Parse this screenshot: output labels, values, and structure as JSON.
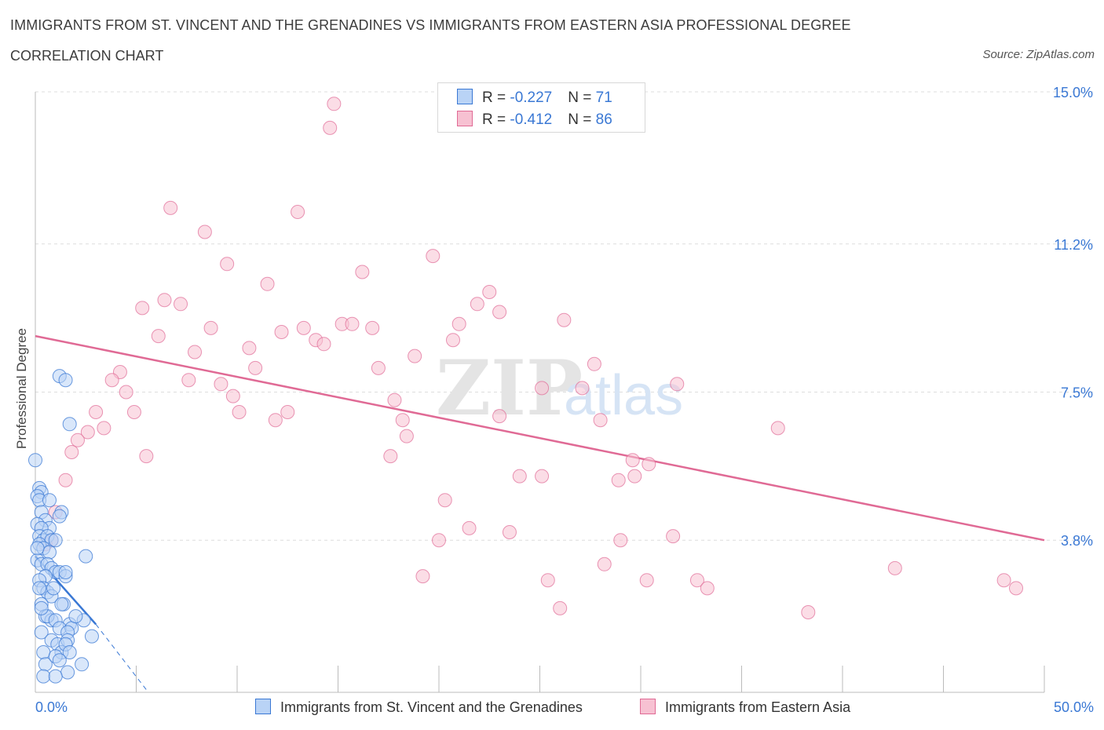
{
  "header": {
    "title_line1": "IMMIGRANTS FROM ST. VINCENT AND THE GRENADINES VS IMMIGRANTS FROM EASTERN ASIA PROFESSIONAL DEGREE",
    "title_line2": "CORRELATION CHART",
    "source": "Source: ZipAtlas.com"
  },
  "legend": {
    "row1": {
      "r_label": "R = ",
      "r_value": "-0.227",
      "n_label": "N = ",
      "n_value": "71"
    },
    "row2": {
      "r_label": "R = ",
      "r_value": "-0.412",
      "n_label": "N = ",
      "n_value": "86"
    }
  },
  "bottom_legend": {
    "series1": "Immigrants from St. Vincent and the Grenadines",
    "series2": "Immigrants from Eastern Asia"
  },
  "colors": {
    "blue": "#3a78d4",
    "blue_fill": "#b9d3f6",
    "pink": "#e06a95",
    "pink_fill": "#f7c1d2",
    "grid": "#dddddd",
    "tick_label": "#3a78d4"
  },
  "chart_data": {
    "type": "scatter",
    "title": "IMMIGRANTS FROM ST. VINCENT AND THE GRENADINES VS IMMIGRANTS FROM EASTERN ASIA PROFESSIONAL DEGREE CORRELATION CHART",
    "xlabel": "",
    "ylabel": "Professional Degree",
    "xlim": [
      0,
      50
    ],
    "ylim": [
      0,
      15
    ],
    "x_tick_labels": {
      "min": "0.0%",
      "max": "50.0%"
    },
    "y_ticks": [
      {
        "value": 3.8,
        "label": "3.8%"
      },
      {
        "value": 7.5,
        "label": "7.5%"
      },
      {
        "value": 11.2,
        "label": "11.2%"
      },
      {
        "value": 15.0,
        "label": "15.0%"
      }
    ],
    "watermark": "ZIPatlas",
    "series": [
      {
        "name": "Immigrants from St. Vincent and the Grenadines",
        "color": "#3a78d4",
        "R": -0.227,
        "N": 71,
        "trend": {
          "x0": 0,
          "y0": 3.4,
          "x1": 3.0,
          "y1": 1.7,
          "dash_to_x": 5.6,
          "dash_to_y": 0.0
        },
        "points": [
          [
            0.0,
            5.8
          ],
          [
            0.2,
            5.1
          ],
          [
            0.3,
            5.0
          ],
          [
            0.1,
            4.9
          ],
          [
            0.2,
            4.8
          ],
          [
            0.3,
            4.5
          ],
          [
            0.5,
            4.3
          ],
          [
            0.7,
            4.1
          ],
          [
            1.3,
            4.5
          ],
          [
            1.2,
            4.4
          ],
          [
            0.1,
            4.2
          ],
          [
            0.3,
            4.1
          ],
          [
            0.2,
            3.9
          ],
          [
            0.4,
            3.8
          ],
          [
            0.6,
            3.9
          ],
          [
            0.8,
            3.8
          ],
          [
            1.0,
            3.8
          ],
          [
            0.2,
            3.7
          ],
          [
            0.4,
            3.6
          ],
          [
            0.7,
            3.5
          ],
          [
            0.1,
            3.3
          ],
          [
            0.3,
            3.2
          ],
          [
            0.6,
            3.2
          ],
          [
            0.8,
            3.1
          ],
          [
            1.0,
            3.0
          ],
          [
            1.2,
            3.0
          ],
          [
            1.5,
            2.9
          ],
          [
            0.5,
            2.9
          ],
          [
            0.2,
            2.8
          ],
          [
            0.4,
            2.6
          ],
          [
            0.6,
            2.5
          ],
          [
            0.8,
            2.4
          ],
          [
            0.3,
            2.2
          ],
          [
            1.4,
            2.2
          ],
          [
            1.3,
            2.2
          ],
          [
            0.5,
            1.9
          ],
          [
            0.8,
            1.8
          ],
          [
            0.6,
            1.9
          ],
          [
            1.0,
            1.8
          ],
          [
            1.7,
            1.7
          ],
          [
            1.2,
            1.6
          ],
          [
            0.3,
            1.5
          ],
          [
            1.8,
            1.6
          ],
          [
            1.6,
            1.5
          ],
          [
            2.4,
            1.8
          ],
          [
            2.8,
            1.4
          ],
          [
            0.8,
            1.3
          ],
          [
            1.1,
            1.2
          ],
          [
            1.6,
            1.3
          ],
          [
            1.3,
            1.0
          ],
          [
            1.5,
            1.2
          ],
          [
            0.4,
            1.0
          ],
          [
            1.7,
            1.0
          ],
          [
            0.5,
            0.7
          ],
          [
            1.0,
            0.9
          ],
          [
            1.2,
            0.8
          ],
          [
            2.3,
            0.7
          ],
          [
            1.6,
            0.5
          ],
          [
            0.4,
            0.4
          ],
          [
            1.0,
            0.4
          ],
          [
            1.2,
            7.9
          ],
          [
            1.5,
            7.8
          ],
          [
            1.7,
            6.7
          ],
          [
            2.5,
            3.4
          ],
          [
            1.5,
            3.0
          ],
          [
            0.9,
            2.6
          ],
          [
            0.3,
            2.1
          ],
          [
            0.1,
            3.6
          ],
          [
            0.7,
            4.8
          ],
          [
            0.2,
            2.6
          ],
          [
            2.0,
            1.9
          ]
        ]
      },
      {
        "name": "Immigrants from Eastern Asia",
        "color": "#e06a95",
        "R": -0.412,
        "N": 86,
        "trend": {
          "x0": 0,
          "y0": 8.9,
          "x1": 50,
          "y1": 3.8
        },
        "points": [
          [
            14.8,
            14.7
          ],
          [
            14.6,
            14.1
          ],
          [
            6.7,
            12.1
          ],
          [
            13.0,
            12.0
          ],
          [
            8.4,
            11.5
          ],
          [
            19.7,
            10.9
          ],
          [
            9.5,
            10.7
          ],
          [
            16.2,
            10.5
          ],
          [
            11.5,
            10.2
          ],
          [
            22.5,
            10.0
          ],
          [
            6.4,
            9.8
          ],
          [
            7.2,
            9.7
          ],
          [
            5.3,
            9.6
          ],
          [
            21.9,
            9.7
          ],
          [
            23.0,
            9.5
          ],
          [
            26.2,
            9.3
          ],
          [
            21.0,
            9.2
          ],
          [
            15.2,
            9.2
          ],
          [
            15.7,
            9.2
          ],
          [
            16.7,
            9.1
          ],
          [
            8.7,
            9.1
          ],
          [
            13.3,
            9.1
          ],
          [
            12.2,
            9.0
          ],
          [
            6.1,
            8.9
          ],
          [
            13.9,
            8.8
          ],
          [
            14.3,
            8.7
          ],
          [
            20.7,
            8.8
          ],
          [
            10.6,
            8.6
          ],
          [
            7.9,
            8.5
          ],
          [
            18.8,
            8.4
          ],
          [
            27.7,
            8.2
          ],
          [
            10.9,
            8.1
          ],
          [
            17.0,
            8.1
          ],
          [
            4.2,
            8.0
          ],
          [
            3.8,
            7.8
          ],
          [
            7.6,
            7.8
          ],
          [
            9.2,
            7.7
          ],
          [
            31.8,
            7.7
          ],
          [
            25.1,
            7.6
          ],
          [
            27.1,
            7.6
          ],
          [
            4.5,
            7.5
          ],
          [
            9.8,
            7.4
          ],
          [
            17.8,
            7.3
          ],
          [
            10.1,
            7.0
          ],
          [
            12.5,
            7.0
          ],
          [
            4.9,
            7.0
          ],
          [
            3.0,
            7.0
          ],
          [
            23.0,
            6.9
          ],
          [
            18.2,
            6.8
          ],
          [
            11.9,
            6.8
          ],
          [
            28.0,
            6.8
          ],
          [
            36.8,
            6.6
          ],
          [
            3.4,
            6.6
          ],
          [
            2.6,
            6.5
          ],
          [
            18.4,
            6.4
          ],
          [
            2.1,
            6.3
          ],
          [
            1.8,
            6.0
          ],
          [
            5.5,
            5.9
          ],
          [
            17.6,
            5.9
          ],
          [
            29.6,
            5.8
          ],
          [
            30.4,
            5.7
          ],
          [
            1.5,
            5.3
          ],
          [
            24.0,
            5.4
          ],
          [
            25.1,
            5.4
          ],
          [
            29.7,
            5.4
          ],
          [
            28.9,
            5.3
          ],
          [
            20.3,
            4.8
          ],
          [
            1.0,
            4.5
          ],
          [
            21.5,
            4.1
          ],
          [
            23.5,
            4.0
          ],
          [
            20.0,
            3.8
          ],
          [
            31.6,
            3.9
          ],
          [
            29.0,
            3.8
          ],
          [
            0.8,
            3.8
          ],
          [
            0.5,
            3.7
          ],
          [
            28.2,
            3.2
          ],
          [
            42.6,
            3.1
          ],
          [
            19.2,
            2.9
          ],
          [
            25.4,
            2.8
          ],
          [
            30.3,
            2.8
          ],
          [
            32.8,
            2.8
          ],
          [
            33.3,
            2.6
          ],
          [
            48.0,
            2.8
          ],
          [
            48.6,
            2.6
          ],
          [
            26.0,
            2.1
          ],
          [
            38.3,
            2.0
          ]
        ]
      }
    ]
  }
}
